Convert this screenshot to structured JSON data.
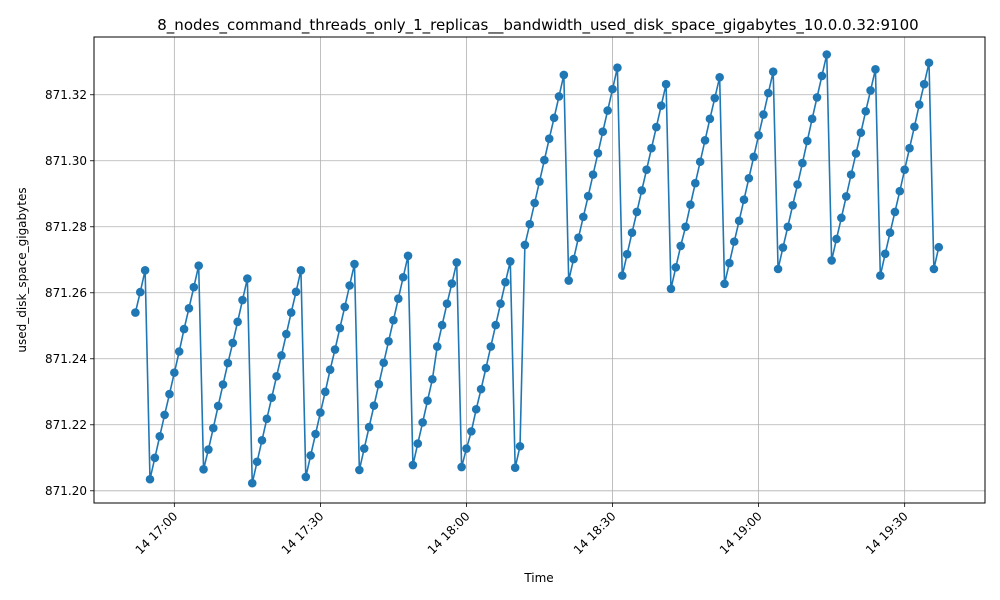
{
  "chart_data": {
    "type": "line",
    "title": "8_nodes_command_threads_only_1_replicas__bandwidth_used_disk_space_gigabytes_10.0.0.32:9100",
    "xlabel": "Time",
    "ylabel": "used_disk_space_gigabytes",
    "x_ticks": [
      "14 17:00",
      "14 17:30",
      "14 18:00",
      "14 18:30",
      "14 19:00",
      "14 19:30"
    ],
    "y_ticks": [
      "871.20",
      "871.22",
      "871.24",
      "871.26",
      "871.28",
      "871.30",
      "871.32"
    ],
    "xlim": [
      "16:43:30",
      "19:46:30"
    ],
    "ylim": [
      871.1963,
      871.3375
    ],
    "grid": true,
    "colors": {
      "line": "#1f77b4",
      "marker": "#1f77b4",
      "grid": "#b0b0b0"
    },
    "series": [
      {
        "points": [
          [
            "16:52",
            871.254
          ],
          [
            "16:53",
            871.2602
          ],
          [
            "16:54",
            871.2668
          ],
          [
            "16:55",
            871.2035
          ],
          [
            "16:56",
            871.21
          ],
          [
            "16:57",
            871.2165
          ],
          [
            "16:58",
            871.223
          ],
          [
            "16:59",
            871.2293
          ],
          [
            "17:00",
            871.2358
          ],
          [
            "17:01",
            871.2422
          ],
          [
            "17:02",
            871.249
          ],
          [
            "17:03",
            871.2553
          ],
          [
            "17:04",
            871.2617
          ],
          [
            "17:05",
            871.2682
          ],
          [
            "17:06",
            871.2065
          ],
          [
            "17:07",
            871.2125
          ],
          [
            "17:08",
            871.219
          ],
          [
            "17:09",
            871.2257
          ],
          [
            "17:10",
            871.2322
          ],
          [
            "17:11",
            871.2387
          ],
          [
            "17:12",
            871.2448
          ],
          [
            "17:13",
            871.2512
          ],
          [
            "17:14",
            871.2578
          ],
          [
            "17:15",
            871.2643
          ],
          [
            "17:16",
            871.2023
          ],
          [
            "17:17",
            871.2088
          ],
          [
            "17:18",
            871.2153
          ],
          [
            "17:19",
            871.2218
          ],
          [
            "17:20",
            871.2282
          ],
          [
            "17:21",
            871.2347
          ],
          [
            "17:22",
            871.241
          ],
          [
            "17:23",
            871.2475
          ],
          [
            "17:24",
            871.254
          ],
          [
            "17:25",
            871.2603
          ],
          [
            "17:26",
            871.2668
          ],
          [
            "17:27",
            871.2042
          ],
          [
            "17:28",
            871.2107
          ],
          [
            "17:29",
            871.2172
          ],
          [
            "17:30",
            871.2237
          ],
          [
            "17:31",
            871.23
          ],
          [
            "17:32",
            871.2367
          ],
          [
            "17:33",
            871.2428
          ],
          [
            "17:34",
            871.2493
          ],
          [
            "17:35",
            871.2557
          ],
          [
            "17:36",
            871.2622
          ],
          [
            "17:37",
            871.2687
          ],
          [
            "17:38",
            871.2063
          ],
          [
            "17:39",
            871.2128
          ],
          [
            "17:40",
            871.2193
          ],
          [
            "17:41",
            871.2258
          ],
          [
            "17:42",
            871.2323
          ],
          [
            "17:43",
            871.2388
          ],
          [
            "17:44",
            871.2453
          ],
          [
            "17:45",
            871.2517
          ],
          [
            "17:46",
            871.2582
          ],
          [
            "17:47",
            871.2647
          ],
          [
            "17:48",
            871.2712
          ],
          [
            "17:49",
            871.2078
          ],
          [
            "17:50",
            871.2143
          ],
          [
            "17:51",
            871.2207
          ],
          [
            "17:52",
            871.2273
          ],
          [
            "17:53",
            871.2338
          ],
          [
            "17:54",
            871.2437
          ],
          [
            "17:55",
            871.2502
          ],
          [
            "17:56",
            871.2567
          ],
          [
            "17:57",
            871.2628
          ],
          [
            "17:58",
            871.2692
          ],
          [
            "17:59",
            871.2072
          ],
          [
            "18:00",
            871.2128
          ],
          [
            "18:01",
            871.218
          ],
          [
            "18:02",
            871.2247
          ],
          [
            "18:03",
            871.2308
          ],
          [
            "18:04",
            871.2372
          ],
          [
            "18:05",
            871.2437
          ],
          [
            "18:06",
            871.2502
          ],
          [
            "18:07",
            871.2567
          ],
          [
            "18:08",
            871.2632
          ],
          [
            "18:09",
            871.2695
          ],
          [
            "18:10",
            871.207
          ],
          [
            "18:11",
            871.2135
          ],
          [
            "18:12",
            871.2745
          ],
          [
            "18:13",
            871.2808
          ],
          [
            "18:14",
            871.2872
          ],
          [
            "18:15",
            871.2937
          ],
          [
            "18:16",
            871.3002
          ],
          [
            "18:17",
            871.3067
          ],
          [
            "18:18",
            871.313
          ],
          [
            "18:19",
            871.3195
          ],
          [
            "18:20",
            871.326
          ],
          [
            "18:21",
            871.2637
          ],
          [
            "18:22",
            871.2702
          ],
          [
            "18:23",
            871.2767
          ],
          [
            "18:24",
            871.283
          ],
          [
            "18:25",
            871.2893
          ],
          [
            "18:26",
            871.2958
          ],
          [
            "18:27",
            871.3023
          ],
          [
            "18:28",
            871.3088
          ],
          [
            "18:29",
            871.3152
          ],
          [
            "18:30",
            871.3217
          ],
          [
            "18:31",
            871.3282
          ],
          [
            "18:32",
            871.2652
          ],
          [
            "18:33",
            871.2717
          ],
          [
            "18:34",
            871.2782
          ],
          [
            "18:35",
            871.2845
          ],
          [
            "18:36",
            871.291
          ],
          [
            "18:37",
            871.2973
          ],
          [
            "18:38",
            871.3038
          ],
          [
            "18:39",
            871.3102
          ],
          [
            "18:40",
            871.3167
          ],
          [
            "18:41",
            871.3232
          ],
          [
            "18:42",
            871.2612
          ],
          [
            "18:43",
            871.2677
          ],
          [
            "18:44",
            871.2742
          ],
          [
            "18:45",
            871.28
          ],
          [
            "18:46",
            871.2867
          ],
          [
            "18:47",
            871.2932
          ],
          [
            "18:48",
            871.2997
          ],
          [
            "18:49",
            871.3062
          ],
          [
            "18:50",
            871.3127
          ],
          [
            "18:51",
            871.319
          ],
          [
            "18:52",
            871.3253
          ],
          [
            "18:53",
            871.2627
          ],
          [
            "18:54",
            871.269
          ],
          [
            "18:55",
            871.2755
          ],
          [
            "18:56",
            871.2818
          ],
          [
            "18:57",
            871.2882
          ],
          [
            "18:58",
            871.2947
          ],
          [
            "18:59",
            871.3012
          ],
          [
            "19:00",
            871.3077
          ],
          [
            "19:01",
            871.314
          ],
          [
            "19:02",
            871.3205
          ],
          [
            "19:03",
            871.327
          ],
          [
            "19:04",
            871.2672
          ],
          [
            "19:05",
            871.2737
          ],
          [
            "19:06",
            871.28
          ],
          [
            "19:07",
            871.2865
          ],
          [
            "19:08",
            871.2928
          ],
          [
            "19:09",
            871.2993
          ],
          [
            "19:10",
            871.306
          ],
          [
            "19:11",
            871.3127
          ],
          [
            "19:12",
            871.3192
          ],
          [
            "19:13",
            871.3257
          ],
          [
            "19:14",
            871.3322
          ],
          [
            "19:15",
            871.2698
          ],
          [
            "19:16",
            871.2763
          ],
          [
            "19:17",
            871.2827
          ],
          [
            "19:18",
            871.2892
          ],
          [
            "19:19",
            871.2958
          ],
          [
            "19:20",
            871.3022
          ],
          [
            "19:21",
            871.3085
          ],
          [
            "19:22",
            871.315
          ],
          [
            "19:23",
            871.3213
          ],
          [
            "19:24",
            871.3277
          ],
          [
            "19:25",
            871.2652
          ],
          [
            "19:26",
            871.2718
          ],
          [
            "19:27",
            871.2782
          ],
          [
            "19:28",
            871.2845
          ],
          [
            "19:29",
            871.2908
          ],
          [
            "19:30",
            871.2973
          ],
          [
            "19:31",
            871.3038
          ],
          [
            "19:32",
            871.3103
          ],
          [
            "19:33",
            871.317
          ],
          [
            "19:34",
            871.3232
          ],
          [
            "19:35",
            871.3297
          ],
          [
            "19:36",
            871.2672
          ],
          [
            "19:37",
            871.2738
          ]
        ]
      }
    ]
  }
}
